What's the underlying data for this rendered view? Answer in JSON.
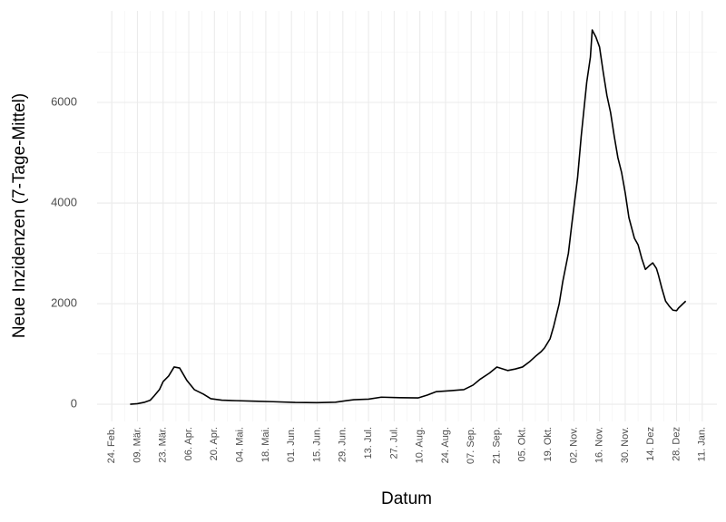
{
  "chart_data": {
    "type": "line",
    "x_label": "Datum",
    "y_label": "Neue Inzidenzen (7-Tage-Mittel)",
    "x": [
      10,
      14,
      18,
      21,
      23,
      26,
      28,
      31,
      34,
      37,
      41,
      45,
      50,
      54,
      60,
      68,
      78,
      88,
      100,
      112,
      122,
      132,
      140,
      147,
      157,
      167,
      172,
      177,
      185,
      192,
      197,
      201,
      206,
      210,
      216,
      220,
      224,
      228,
      231,
      234,
      236,
      239,
      241,
      244,
      246,
      249,
      251,
      254,
      256,
      259,
      261,
      262,
      264,
      266,
      268,
      270,
      272,
      274,
      276,
      278,
      280,
      282,
      285,
      287,
      289,
      291,
      293,
      295,
      297,
      298,
      300,
      302,
      304,
      306,
      308,
      309,
      311,
      313
    ],
    "series": [
      {
        "name": "Neue Inzidenzen",
        "color": "#000000",
        "values": [
          0,
          10,
          40,
          80,
          160,
          290,
          450,
          560,
          740,
          720,
          470,
          290,
          200,
          110,
          80,
          70,
          60,
          50,
          35,
          30,
          40,
          90,
          100,
          140,
          130,
          125,
          180,
          250,
          270,
          290,
          380,
          500,
          620,
          740,
          670,
          700,
          740,
          850,
          950,
          1040,
          1120,
          1300,
          1550,
          2000,
          2450,
          3000,
          3620,
          4500,
          5330,
          6400,
          6900,
          7440,
          7300,
          7100,
          6600,
          6140,
          5800,
          5330,
          4900,
          4610,
          4200,
          3710,
          3300,
          3170,
          2900,
          2680,
          2750,
          2810,
          2700,
          2580,
          2300,
          2050,
          1950,
          1870,
          1860,
          1910,
          1980,
          2050
        ]
      }
    ],
    "xlim": [
      -8,
      330
    ],
    "xticks": [
      {
        "value": 0,
        "label": "24. Feb."
      },
      {
        "value": 14,
        "label": "09. Mär."
      },
      {
        "value": 28,
        "label": "23. Mär."
      },
      {
        "value": 42,
        "label": "06. Apr."
      },
      {
        "value": 56,
        "label": "20. Apr."
      },
      {
        "value": 70,
        "label": "04. Mai."
      },
      {
        "value": 84,
        "label": "18. Mai."
      },
      {
        "value": 98,
        "label": "01. Jun."
      },
      {
        "value": 112,
        "label": "15. Jun."
      },
      {
        "value": 126,
        "label": "29. Jun."
      },
      {
        "value": 140,
        "label": "13. Jul."
      },
      {
        "value": 154,
        "label": "27. Jul."
      },
      {
        "value": 168,
        "label": "10. Aug."
      },
      {
        "value": 182,
        "label": "24. Aug."
      },
      {
        "value": 196,
        "label": "07. Sep."
      },
      {
        "value": 210,
        "label": "21. Sep."
      },
      {
        "value": 224,
        "label": "05. Okt."
      },
      {
        "value": 238,
        "label": "19. Okt."
      },
      {
        "value": 252,
        "label": "02. Nov."
      },
      {
        "value": 266,
        "label": "16. Nov."
      },
      {
        "value": 280,
        "label": "30. Nov."
      },
      {
        "value": 294,
        "label": "14. Dez"
      },
      {
        "value": 308,
        "label": "28. Dez"
      },
      {
        "value": 322,
        "label": "11. Jan."
      }
    ],
    "ylim": [
      -342,
      7820
    ],
    "yticks": [
      0,
      2000,
      4000,
      6000
    ],
    "grid": true
  }
}
